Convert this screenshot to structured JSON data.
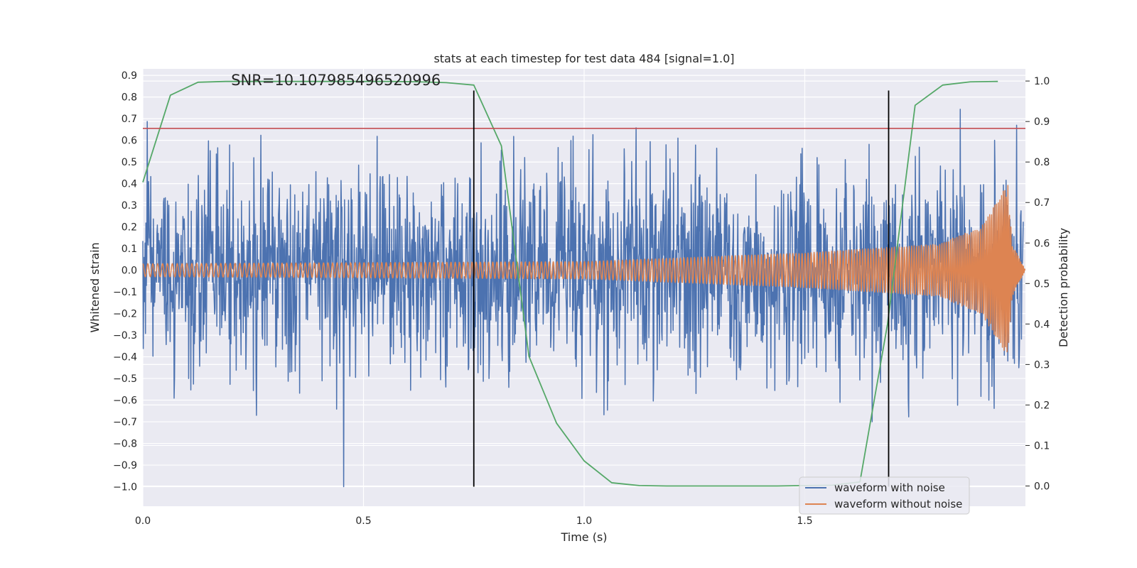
{
  "chart_data": {
    "type": "line",
    "title": "stats at each timestep for test data 484 [signal=1.0]",
    "xlabel": "Time (s)",
    "ylabel": "Whitened strain",
    "ylabel_right": "Detection probability",
    "xlim": [
      0.0,
      2.0
    ],
    "ylim": [
      -1.09,
      0.93
    ],
    "ylim_right": [
      -0.05,
      1.03
    ],
    "x_ticks": [
      0.0,
      0.5,
      1.0,
      1.5
    ],
    "x_tick_labels": [
      "0.0",
      "0.5",
      "1.0",
      "1.5"
    ],
    "y_ticks": [
      0.9,
      0.8,
      0.7,
      0.6,
      0.5,
      0.4,
      0.3,
      0.2,
      0.1,
      0.0,
      -0.1,
      -0.2,
      -0.3,
      -0.4,
      -0.5,
      -0.6,
      -0.7,
      -0.8,
      -0.9,
      -1.0
    ],
    "y_tick_labels": [
      "0.9",
      "0.8",
      "0.7",
      "0.6",
      "0.5",
      "0.4",
      "0.3",
      "0.2",
      "0.1",
      "0.0",
      "−0.1",
      "−0.2",
      "−0.3",
      "−0.4",
      "−0.5",
      "−0.6",
      "−0.7",
      "−0.8",
      "−0.9",
      "−1.0"
    ],
    "y_right_ticks": [
      1.0,
      0.9,
      0.8,
      0.7,
      0.6,
      0.5,
      0.4,
      0.3,
      0.2,
      0.1,
      0.0
    ],
    "y_right_tick_labels": [
      "1.0",
      "0.9",
      "0.8",
      "0.7",
      "0.6",
      "0.5",
      "0.4",
      "0.3",
      "0.2",
      "0.1",
      "0.0"
    ],
    "grid": true,
    "background": "#eaeaf2",
    "annotation": {
      "text": "SNR=10.107985496520996",
      "x": 0.2,
      "y": 0.855
    },
    "series": [
      {
        "name": "waveform with noise",
        "color": "#4c72b0",
        "axis": "left",
        "kind": "noise",
        "noise_sigma": 0.24,
        "t_end": 1.995,
        "n_points": 2000,
        "seed": 484
      },
      {
        "name": "waveform without noise",
        "color": "#dd8452",
        "axis": "left",
        "kind": "chirp",
        "t_end": 2.0,
        "amplitude_envelope": [
          [
            0.0,
            0.03
          ],
          [
            1.0,
            0.04
          ],
          [
            1.5,
            0.08
          ],
          [
            1.8,
            0.12
          ],
          [
            1.9,
            0.2
          ],
          [
            1.96,
            0.4
          ],
          [
            1.97,
            0.12
          ],
          [
            2.0,
            0.0
          ]
        ]
      },
      {
        "name": "",
        "color": "#55a868",
        "axis": "right",
        "kind": "line",
        "x": [
          0.0,
          0.0625,
          0.125,
          0.1875,
          0.25,
          0.3125,
          0.375,
          0.4375,
          0.5,
          0.5625,
          0.625,
          0.6875,
          0.75,
          0.8125,
          0.875,
          0.9375,
          1.0,
          1.0625,
          1.125,
          1.1875,
          1.25,
          1.3125,
          1.375,
          1.4375,
          1.5,
          1.5625,
          1.625,
          1.6875,
          1.75,
          1.8125,
          1.875,
          1.9375
        ],
        "y": [
          0.75,
          0.965,
          0.997,
          0.999,
          0.999,
          0.999,
          0.999,
          0.999,
          0.999,
          0.999,
          0.998,
          0.996,
          0.99,
          0.84,
          0.32,
          0.155,
          0.062,
          0.008,
          0.001,
          0.0,
          0.0,
          0.0,
          0.0,
          0.0,
          0.001,
          0.002,
          0.01,
          0.4,
          0.94,
          0.99,
          0.998,
          0.999
        ]
      }
    ],
    "hlines": [
      {
        "y": 0.655,
        "color": "#c44e52",
        "axis": "left"
      }
    ],
    "vlines": [
      {
        "x": 0.75,
        "y_from": -1.0,
        "y_to": 0.83,
        "color": "#000000"
      },
      {
        "x": 1.69,
        "y_from": -1.0,
        "y_to": 0.83,
        "color": "#000000"
      }
    ],
    "legend": {
      "placement": "lower-right",
      "entries": [
        {
          "label": "waveform with noise",
          "color": "#4c72b0"
        },
        {
          "label": "waveform without noise",
          "color": "#dd8452"
        }
      ]
    }
  }
}
